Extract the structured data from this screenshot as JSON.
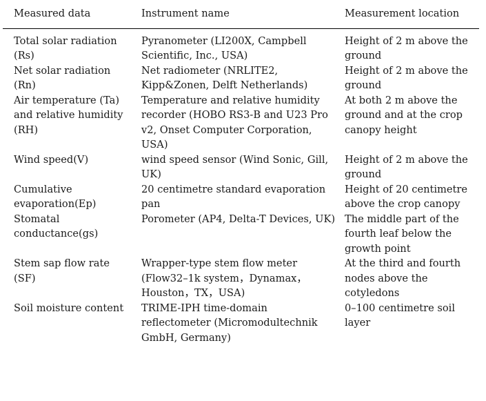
{
  "table": {
    "headers": [
      "Measured data",
      "Instrument name",
      "Measurement location"
    ],
    "rows": [
      {
        "measured": "Total solar radiation (Rs)",
        "instrument": "Pyranometer (LI200X, Campbell Scientific, Inc., USA)",
        "location": "Height of 2 m above the ground"
      },
      {
        "measured": "Net solar radiation (Rn)",
        "instrument": "Net radiometer (NRLITE2, Kipp&Zonen, Delft Netherlands)",
        "location": "Height of 2 m above the ground"
      },
      {
        "measured": "Air temperature (Ta) and relative humidity (RH)",
        "instrument": "Temperature and relative humidity recorder (HOBO RS3-B and U23 Pro v2, Onset Computer Corporation, USA)",
        "location": "At both 2 m above the ground and at the crop canopy height"
      },
      {
        "measured": "Wind speed(V)",
        "instrument": "wind speed sensor (Wind Sonic, Gill, UK)",
        "location": "Height of 2 m above the ground"
      },
      {
        "measured": "Cumulative evaporation(Ep)",
        "instrument": "20 centimetre standard evaporation pan",
        "location": "Height of 20 centimetre above the crop canopy"
      },
      {
        "measured": "Stomatal conductance(gs)",
        "instrument": "Porometer (AP4, Delta-T Devices, UK)",
        "location": "The middle part of the fourth leaf below the growth point"
      },
      {
        "measured": "Stem sap flow rate (SF)",
        "instrument": "Wrapper-type stem flow meter (Flow32–1k system，Dynamax， Houston，TX，USA)",
        "location": "At the third and fourth nodes above the cotyledons"
      },
      {
        "measured": "Soil moisture content",
        "instrument": "TRIME-IPH time-domain reflectometer (Micromodultechnik GmbH, Germany)",
        "location": "0–100 centimetre soil layer"
      }
    ]
  }
}
